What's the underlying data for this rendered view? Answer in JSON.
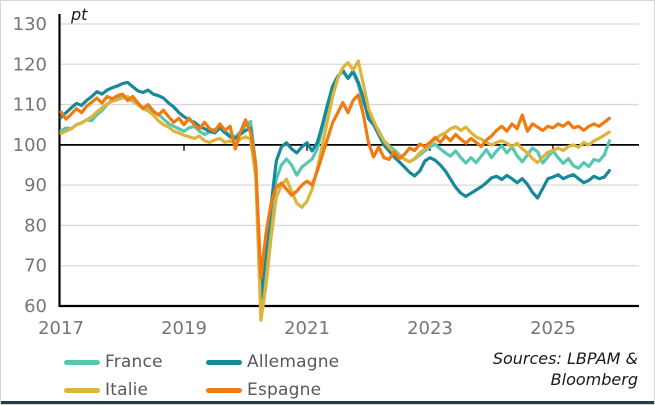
{
  "title": {
    "unit_label": "pt"
  },
  "axes": {
    "y_ticks": [
      "130",
      "120",
      "110",
      "100",
      "90",
      "80",
      "70",
      "60"
    ],
    "x_ticks": [
      "2017",
      "2019",
      "2021",
      "2023",
      "2025"
    ],
    "tick_color": "#767676",
    "gridline_color": "#d9d9d9",
    "axis_color": "#000000"
  },
  "sources": {
    "line1": "Sources: LBPAM &",
    "line2": "Bloomberg"
  },
  "colors": {
    "bottom_bar": "#1f3864",
    "background": "#ffffff"
  },
  "chart_data": {
    "type": "line",
    "title": "",
    "ylabel": "pt",
    "xlabel": "",
    "ylim": [
      60,
      130
    ],
    "baseline": 100,
    "grid": "horizontal",
    "legend_position": "bottom",
    "x_start": "2017-01",
    "x_end": "2025-12",
    "frequency": "monthly",
    "x_tick_years": [
      2017,
      2019,
      2021,
      2023,
      2025
    ],
    "series": [
      {
        "name": "France",
        "color": "#57c7b2",
        "values": [
          103.5,
          104.2,
          104.0,
          105.0,
          105.5,
          106.2,
          106.0,
          107.5,
          108.5,
          110.0,
          111.2,
          111.8,
          112.3,
          111.5,
          110.8,
          110.0,
          109.3,
          108.8,
          108.2,
          107.6,
          106.4,
          105.3,
          104.6,
          104.0,
          103.4,
          104.2,
          104.6,
          103.4,
          102.6,
          103.2,
          103.8,
          104.6,
          103.4,
          102.4,
          102.0,
          103.2,
          104.8,
          105.8,
          95.0,
          58.5,
          71.0,
          82.0,
          91.5,
          95.0,
          96.5,
          95.0,
          92.5,
          94.5,
          95.5,
          96.5,
          99.0,
          104.0,
          109.5,
          114.5,
          117.0,
          118.2,
          116.5,
          118.0,
          115.0,
          110.5,
          107.5,
          105.5,
          103.5,
          101.0,
          99.8,
          98.8,
          97.5,
          96.5,
          95.8,
          96.5,
          97.5,
          98.5,
          99.5,
          100.2,
          99.0,
          98.0,
          97.2,
          98.5,
          96.8,
          95.5,
          96.8,
          95.6,
          97.2,
          98.8,
          96.8,
          98.5,
          99.8,
          98.0,
          99.5,
          97.3,
          95.8,
          97.5,
          99.2,
          98.3,
          95.5,
          97.0,
          98.5,
          96.8,
          95.4,
          96.6,
          94.8,
          94.2,
          95.6,
          94.6,
          96.4,
          96.0,
          97.5,
          101.0
        ]
      },
      {
        "name": "Allemagne",
        "color": "#17899b",
        "values": [
          106.8,
          108.0,
          109.2,
          110.3,
          109.8,
          111.0,
          112.0,
          113.2,
          112.6,
          113.6,
          114.2,
          114.6,
          115.2,
          115.5,
          114.4,
          113.4,
          113.0,
          113.6,
          112.6,
          112.2,
          111.6,
          110.4,
          109.4,
          108.0,
          107.0,
          106.2,
          105.6,
          104.6,
          104.0,
          103.4,
          103.0,
          104.2,
          103.0,
          102.0,
          101.6,
          102.6,
          103.6,
          104.0,
          94.0,
          62.0,
          74.0,
          85.0,
          96.0,
          99.5,
          100.5,
          99.0,
          98.0,
          99.5,
          100.5,
          98.5,
          100.5,
          105.0,
          110.0,
          114.5,
          117.0,
          118.5,
          116.5,
          118.3,
          115.5,
          111.5,
          106.5,
          105.0,
          102.5,
          100.0,
          98.5,
          97.0,
          95.8,
          94.5,
          93.2,
          92.3,
          93.5,
          96.0,
          96.8,
          96.2,
          95.0,
          93.5,
          91.5,
          89.5,
          88.0,
          87.2,
          88.0,
          88.8,
          89.6,
          90.6,
          91.8,
          92.2,
          91.4,
          92.4,
          91.6,
          90.6,
          91.6,
          90.2,
          88.2,
          86.8,
          89.2,
          91.6,
          92.0,
          92.6,
          91.6,
          92.2,
          92.6,
          91.6,
          90.6,
          91.2,
          92.2,
          91.6,
          92.0,
          93.6
        ]
      },
      {
        "name": "Italie",
        "color": "#ddb53c",
        "values": [
          102.8,
          103.4,
          104.0,
          105.0,
          105.4,
          106.2,
          107.0,
          108.2,
          109.2,
          110.2,
          110.8,
          111.2,
          111.6,
          112.0,
          111.0,
          110.0,
          109.0,
          108.4,
          107.4,
          106.0,
          105.0,
          104.4,
          103.4,
          103.0,
          102.4,
          102.0,
          101.6,
          102.2,
          101.0,
          100.6,
          101.2,
          101.6,
          100.6,
          101.0,
          100.4,
          101.4,
          102.0,
          101.4,
          92.0,
          56.5,
          65.0,
          77.0,
          87.0,
          90.0,
          91.5,
          88.5,
          85.5,
          84.5,
          86.0,
          89.0,
          94.0,
          100.0,
          106.0,
          112.0,
          116.5,
          119.2,
          120.4,
          118.6,
          120.8,
          115.0,
          109.0,
          106.0,
          103.2,
          101.0,
          99.4,
          98.2,
          97.2,
          96.4,
          95.8,
          96.6,
          98.0,
          99.0,
          100.2,
          101.4,
          102.4,
          103.0,
          104.0,
          104.5,
          103.6,
          104.4,
          103.0,
          102.0,
          101.4,
          100.6,
          100.0,
          100.6,
          101.0,
          100.4,
          99.6,
          100.4,
          99.0,
          98.0,
          96.6,
          95.6,
          97.0,
          98.2,
          98.6,
          99.2,
          98.6,
          99.6,
          100.0,
          99.4,
          100.6,
          100.0,
          101.0,
          101.6,
          102.4,
          103.2
        ]
      },
      {
        "name": "Espagne",
        "color": "#ef7b13",
        "values": [
          108.2,
          106.4,
          107.6,
          109.0,
          108.0,
          109.6,
          110.6,
          111.6,
          110.4,
          112.0,
          111.4,
          112.2,
          112.6,
          111.0,
          112.0,
          110.4,
          109.0,
          110.0,
          108.4,
          107.4,
          108.6,
          107.0,
          105.6,
          106.6,
          105.0,
          106.6,
          105.0,
          104.0,
          105.6,
          104.0,
          103.4,
          105.2,
          103.6,
          104.6,
          99.0,
          103.2,
          106.2,
          103.0,
          95.0,
          67.0,
          78.0,
          85.5,
          89.5,
          90.5,
          89.0,
          87.5,
          88.5,
          90.0,
          91.0,
          90.0,
          93.5,
          97.5,
          101.5,
          105.5,
          108.0,
          110.5,
          108.0,
          111.0,
          112.4,
          107.5,
          100.5,
          97.0,
          99.5,
          96.8,
          96.4,
          98.2,
          96.6,
          97.6,
          99.2,
          98.6,
          100.2,
          99.6,
          100.6,
          101.8,
          100.6,
          102.2,
          101.0,
          102.6,
          101.4,
          100.4,
          101.6,
          100.6,
          99.6,
          101.2,
          102.2,
          103.6,
          104.6,
          103.4,
          105.2,
          104.0,
          107.4,
          103.4,
          105.2,
          104.4,
          103.6,
          104.6,
          104.2,
          105.2,
          104.6,
          105.6,
          104.2,
          104.6,
          103.6,
          104.6,
          105.2,
          104.6,
          105.6,
          106.6
        ]
      }
    ]
  }
}
